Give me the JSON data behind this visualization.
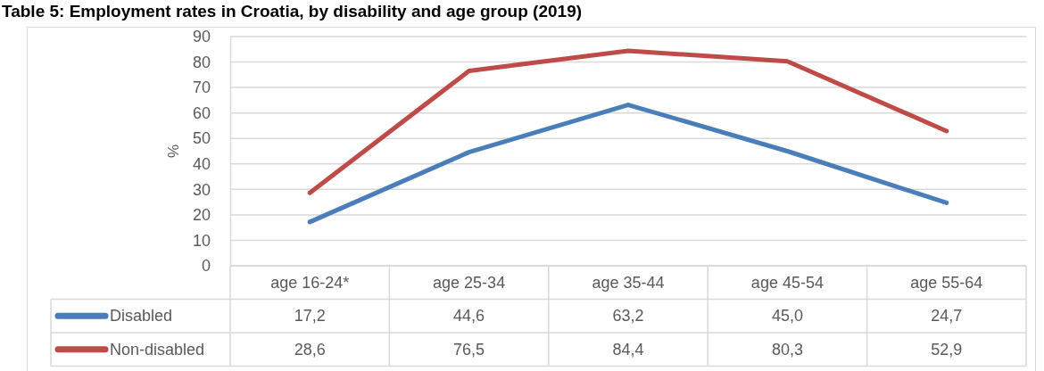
{
  "chart_data": {
    "type": "line",
    "title": "Table 5: Employment rates in Croatia, by disability and age group (2019)",
    "ylabel": "%",
    "categories": [
      "age 16-24*",
      "age 25-34",
      "age 35-44",
      "age 45-54",
      "age 55-64"
    ],
    "series": [
      {
        "name": "Disabled",
        "color": "#4a7ebb",
        "values": [
          17.2,
          44.6,
          63.2,
          45.0,
          24.7
        ],
        "value_labels": [
          "17,2",
          "44,6",
          "63,2",
          "45,0",
          "24,7"
        ]
      },
      {
        "name": "Non-disabled",
        "color": "#be4b48",
        "values": [
          28.6,
          76.5,
          84.4,
          80.3,
          52.9
        ],
        "value_labels": [
          "28,6",
          "76,5",
          "84,4",
          "80,3",
          "52,9"
        ]
      }
    ],
    "ylim": [
      0,
      90
    ],
    "yticks": [
      0,
      10,
      20,
      30,
      40,
      50,
      60,
      70,
      80,
      90
    ],
    "grid": "y",
    "legend": "bottom"
  }
}
